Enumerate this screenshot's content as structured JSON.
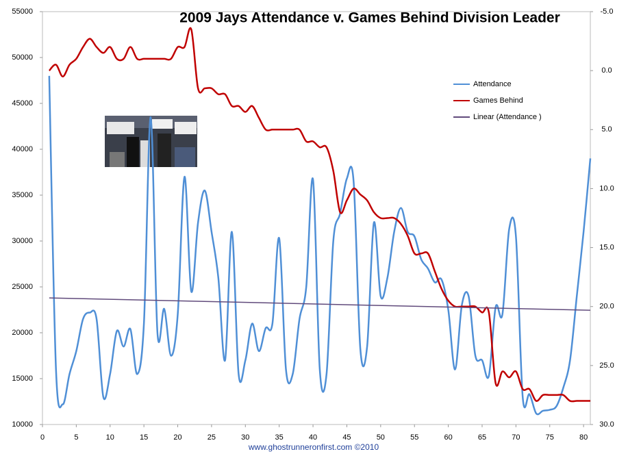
{
  "chart_data": {
    "type": "line",
    "title": "2009 Jays Attendance v. Games Behind Division Leader",
    "footer": "www.ghostrunneronfirst.com ©2010",
    "x": [
      1,
      2,
      3,
      4,
      5,
      6,
      7,
      8,
      9,
      10,
      11,
      12,
      13,
      14,
      15,
      16,
      17,
      18,
      19,
      20,
      21,
      22,
      23,
      24,
      25,
      26,
      27,
      28,
      29,
      30,
      31,
      32,
      33,
      34,
      35,
      36,
      37,
      38,
      39,
      40,
      41,
      42,
      43,
      44,
      45,
      46,
      47,
      48,
      49,
      50,
      51,
      52,
      53,
      54,
      55,
      56,
      57,
      58,
      59,
      60,
      61,
      62,
      63,
      64,
      65,
      66,
      67,
      68,
      69,
      70,
      71,
      72,
      73,
      74,
      75,
      76,
      77,
      78,
      79,
      80,
      81
    ],
    "xlim": [
      0,
      81
    ],
    "xticks": [
      0,
      5,
      10,
      15,
      20,
      25,
      30,
      35,
      40,
      45,
      50,
      55,
      60,
      65,
      70,
      75,
      80
    ],
    "ylim": [
      10000,
      55000
    ],
    "yticks": [
      10000,
      15000,
      20000,
      25000,
      30000,
      35000,
      40000,
      45000,
      50000,
      55000
    ],
    "y2lim": [
      -5,
      30
    ],
    "y2_inverted": true,
    "y2ticks": [
      {
        "value": -5,
        "label": "-5.0"
      },
      {
        "value": 0,
        "label": "0.0"
      },
      {
        "value": 5,
        "label": "5.0"
      },
      {
        "value": 10,
        "label": "10.0"
      },
      {
        "value": 15,
        "label": "15.0"
      },
      {
        "value": 20,
        "label": "20.0"
      },
      {
        "value": 25,
        "label": "25.0"
      },
      {
        "value": 30,
        "label": "30.0"
      }
    ],
    "grid": false,
    "series": [
      {
        "name": "Attendance",
        "color": "#4f8fd6",
        "values": [
          48000,
          16000,
          12200,
          15500,
          18000,
          21500,
          22200,
          21500,
          13000,
          15500,
          20200,
          18500,
          20400,
          15500,
          21000,
          43500,
          20000,
          22600,
          17500,
          22000,
          37000,
          24500,
          32000,
          35500,
          31000,
          26000,
          17000,
          31000,
          15500,
          17000,
          21000,
          18000,
          20500,
          21000,
          30300,
          16000,
          15500,
          21500,
          25000,
          36700,
          16000,
          15500,
          30000,
          33000,
          36800,
          36500,
          18200,
          18500,
          32000,
          24000,
          26000,
          31000,
          33600,
          31000,
          30500,
          28000,
          27000,
          25500,
          25800,
          22500,
          16000,
          23000,
          24000,
          17500,
          17000,
          15300,
          22800,
          22000,
          31300,
          30500,
          13000,
          13300,
          11200,
          11500,
          11600,
          12000,
          14000,
          17000,
          24000,
          31000,
          39000
        ]
      },
      {
        "name": "Games Behind",
        "color": "#c00000",
        "axis": "y2",
        "values": [
          0,
          -0.5,
          0.5,
          -0.5,
          -1,
          -2,
          -2.7,
          -2,
          -1.5,
          -2,
          -1,
          -1,
          -2,
          -1,
          -1,
          -1,
          -1,
          -1,
          -1,
          -2,
          -2,
          -3.5,
          1.5,
          1.5,
          1.5,
          2,
          2,
          3,
          3,
          3.5,
          3,
          4,
          5,
          5,
          5,
          5,
          5,
          5,
          6,
          6,
          6.5,
          6.5,
          8.5,
          12,
          11,
          10,
          10.5,
          11,
          12,
          12.5,
          12.5,
          12.5,
          13,
          14,
          15.5,
          15.5,
          15.5,
          17,
          18.5,
          19.5,
          20,
          20,
          20,
          20,
          20.5,
          20.5,
          26.5,
          25.5,
          26,
          25.5,
          27,
          27,
          28,
          27.5,
          27.5,
          27.5,
          27.5,
          28,
          28,
          28,
          28
        ]
      },
      {
        "name": "Linear (Attendance )",
        "color": "#604a7b",
        "x": [
          1,
          81
        ],
        "values": [
          23800,
          22450
        ],
        "straight": true
      }
    ]
  }
}
